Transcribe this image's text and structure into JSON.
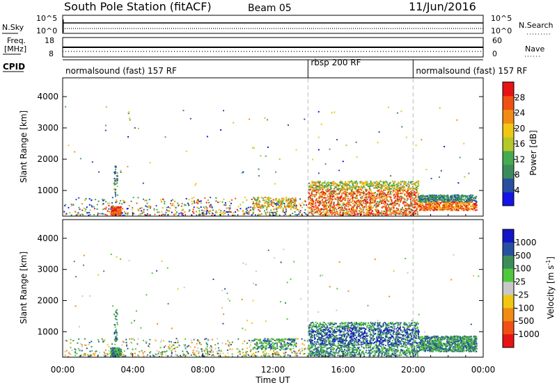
{
  "header": {
    "station": "South Pole Station (fitACF)",
    "beam": "Beam 05",
    "date": "11/Jun/2016"
  },
  "top_panels": {
    "nsky_label": "N.Sky",
    "nsky_ticks": [
      "10^5",
      "10^0"
    ],
    "nsearch_label": "N.Search",
    "nsearch_ticks": [
      "10^5",
      "10^0"
    ],
    "freq_label_1": "Freq.",
    "freq_label_2": "[MHz]",
    "freq_ticks": [
      "18",
      "8"
    ],
    "nave_label": "Nave",
    "nave_ticks": [
      "60",
      "0"
    ],
    "cpid_label": "CPID",
    "cpid_segments": [
      {
        "label": "normalsound (fast) 157 RF",
        "start": 0,
        "end": 14
      },
      {
        "label": "rbsp 200 RF",
        "start": 14,
        "end": 20
      },
      {
        "label": "normalsound (fast) 157 RF",
        "start": 20,
        "end": 24
      }
    ]
  },
  "colors": {
    "power": [
      "#1414e6",
      "#2850a0",
      "#3c8c5a",
      "#46aa50",
      "#b4c828",
      "#f0c814",
      "#f08c14",
      "#f05014",
      "#e61414"
    ],
    "velocity": [
      "#1414c8",
      "#2850a0",
      "#3c8c5a",
      "#50c83c",
      "#c8c8c8",
      "#f0c814",
      "#f08c14",
      "#f05014",
      "#e61414"
    ]
  },
  "chart_data": [
    {
      "type": "heatmap",
      "name": "power",
      "ylabel": "Slant Range [km]",
      "ylim": [
        180,
        4600
      ],
      "y_ticks": [
        1000,
        2000,
        3000,
        4000
      ],
      "colorbar_label": "Power [dB]",
      "colorbar_ticks": [
        "4",
        "8",
        "12",
        "16",
        "20",
        "24",
        "28"
      ],
      "colorbar_range": [
        0,
        32
      ]
    },
    {
      "type": "heatmap",
      "name": "velocity",
      "xlabel": "Time UT",
      "ylabel": "Slant Range [km]",
      "ylim": [
        180,
        4600
      ],
      "y_ticks": [
        1000,
        2000,
        3000,
        4000
      ],
      "x_ticks": [
        "00:00",
        "04:00",
        "08:00",
        "12:00",
        "16:00",
        "20:00",
        "00:00"
      ],
      "xlim_hours": [
        0,
        24
      ],
      "colorbar_label_main": "Velocity",
      "colorbar_label_units": "[m s",
      "colorbar_label_exp": "-1",
      "colorbar_label_close": "]",
      "colorbar_ticks": [
        "1000",
        "500",
        "100",
        "25",
        "-25",
        "-100",
        "-500",
        "-1000"
      ]
    }
  ]
}
